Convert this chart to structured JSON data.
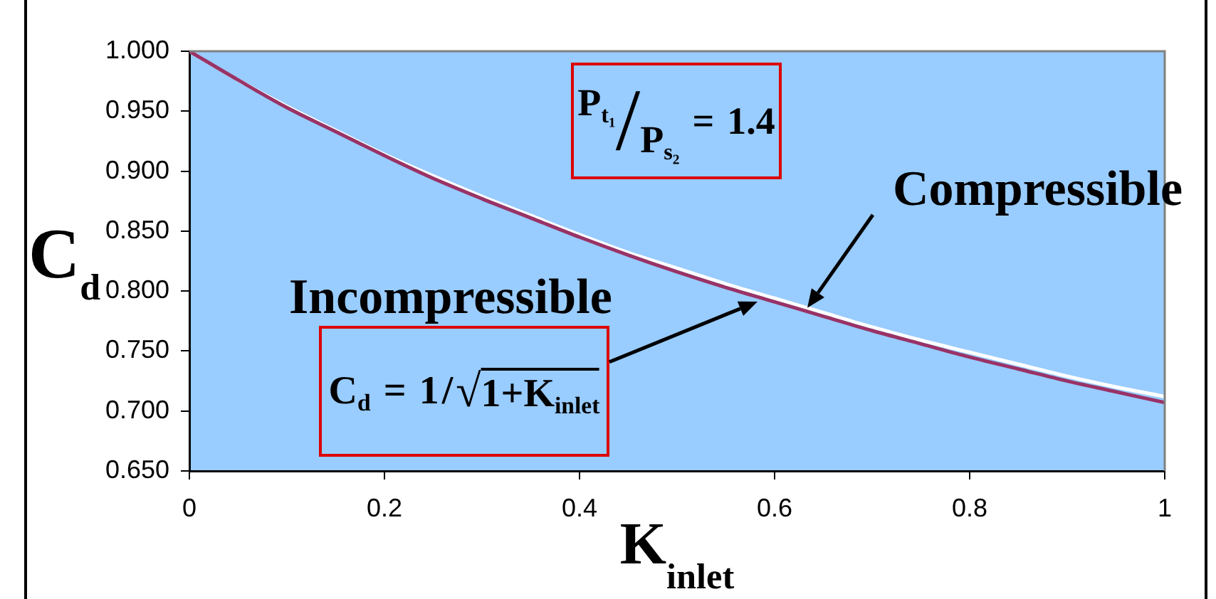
{
  "chart_data": {
    "type": "line",
    "xlabel": "K$_{inlet}$",
    "ylabel": "C$_{d}$",
    "x": [
      0,
      0.05,
      0.1,
      0.15,
      0.2,
      0.25,
      0.3,
      0.35,
      0.4,
      0.45,
      0.5,
      0.55,
      0.6,
      0.65,
      0.7,
      0.75,
      0.8,
      0.85,
      0.9,
      0.95,
      1
    ],
    "series": [
      {
        "name": "Incompressible",
        "color": "#993366",
        "values": [
          1,
          0.976,
          0.953,
          0.933,
          0.913,
          0.894,
          0.877,
          0.861,
          0.845,
          0.83,
          0.816,
          0.803,
          0.791,
          0.779,
          0.767,
          0.756,
          0.745,
          0.735,
          0.725,
          0.716,
          0.707
        ]
      },
      {
        "name": "Compressible",
        "color": "#ffffff",
        "values": [
          1,
          0.976,
          0.954,
          0.934,
          0.914,
          0.896,
          0.879,
          0.863,
          0.847,
          0.832,
          0.819,
          0.806,
          0.794,
          0.782,
          0.77,
          0.759,
          0.749,
          0.739,
          0.729,
          0.72,
          0.712
        ]
      }
    ],
    "xlim": [
      0,
      1
    ],
    "xticks": [
      0,
      0.2,
      0.4,
      0.6,
      0.8,
      1
    ],
    "ylim": [
      0.65,
      1
    ],
    "yticks": [
      {
        "value": 0.65,
        "label": "0.650"
      },
      {
        "value": 0.7,
        "label": "0.700"
      },
      {
        "value": 0.75,
        "label": "0.750"
      },
      {
        "value": 0.8,
        "label": "0.800"
      },
      {
        "value": 0.85,
        "label": "0.850"
      },
      {
        "value": 0.9,
        "label": "0.900"
      },
      {
        "value": 0.95,
        "label": "0.950"
      },
      {
        "value": 1,
        "label": "1.000"
      }
    ],
    "annotations": [
      "C$_{d}$ = 1/√1+K$_{inlet}$",
      "P$_{t₁}$/P$_{s₂}$ = 1.4"
    ]
  }
}
